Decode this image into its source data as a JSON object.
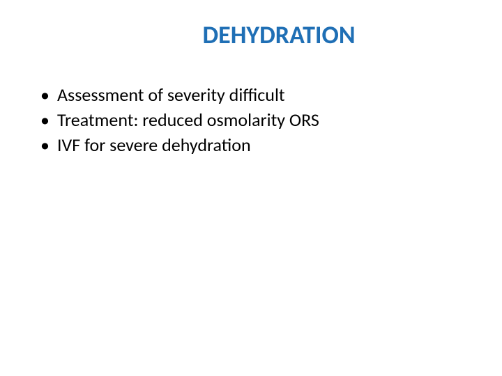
{
  "slide": {
    "title": "DEHYDRATION",
    "title_color": "#1f6fb5",
    "title_fontsize": 36,
    "title_fontweight": "bold",
    "bullets": [
      "Assessment of severity difficult",
      "Treatment: reduced osmolarity ORS",
      "IVF for severe dehydration"
    ],
    "bullet_color": "#000000",
    "bullet_fontsize": 26,
    "background_color": "#ffffff"
  }
}
